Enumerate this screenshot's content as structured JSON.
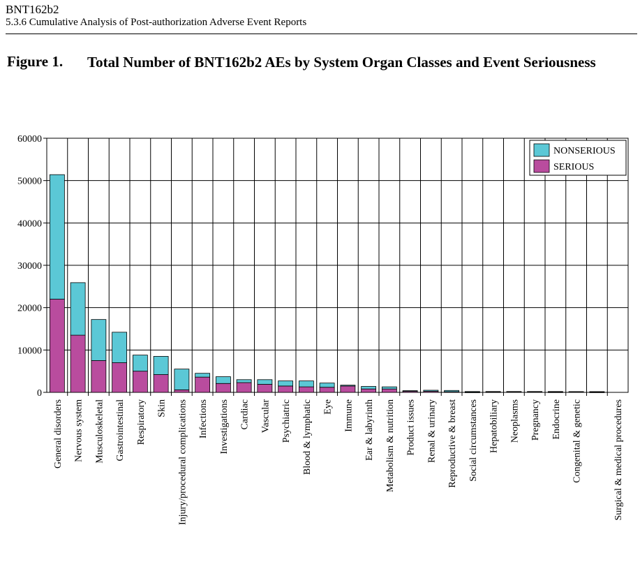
{
  "header": {
    "doc_id": "BNT162b2",
    "section": "5.3.6 Cumulative Analysis of Post-authorization Adverse Event Reports"
  },
  "figure": {
    "label": "Figure 1.",
    "title": "Total Number of BNT162b2 AEs by System Organ Classes and Event Seriousness"
  },
  "chart_data": {
    "type": "bar",
    "stacked": true,
    "title": "",
    "xlabel": "",
    "ylabel": "",
    "ylim": [
      0,
      60000
    ],
    "yticks": [
      0,
      10000,
      20000,
      30000,
      40000,
      50000,
      60000
    ],
    "ytick_labels": [
      "0",
      "10000",
      "20000",
      "30000",
      "40000",
      "50000",
      "60000"
    ],
    "grid": true,
    "legend_position": "top-right",
    "categories": [
      "General disorders",
      "Nervous system",
      "Musculoskeletal",
      "Gastrointestinal",
      "Respiratory",
      "Skin",
      "Injury/procedural complications",
      "Infections",
      "Investigations",
      "Cardiac",
      "Vascular",
      "Psychiatric",
      "Blood & lymphatic",
      "Eye",
      "Immune",
      "Ear & labyrinth",
      "Metabolism & nutrition",
      "Product issues",
      "Renal & urinary",
      "Reproductive & breast",
      "Social circumstances",
      "Hepatobiliary",
      "Neoplasms",
      "Pregnancy",
      "Endocrine",
      "Congenital & genetic",
      "",
      "Surgical & medical procedures"
    ],
    "series": [
      {
        "name": "SERIOUS",
        "color": "#b94c9e",
        "values": [
          22000,
          13500,
          7500,
          7000,
          5000,
          4200,
          600,
          3600,
          2100,
          2300,
          1900,
          1500,
          1300,
          1200,
          1500,
          800,
          800,
          250,
          250,
          150,
          50,
          100,
          150,
          150,
          80,
          150,
          60,
          0
        ]
      },
      {
        "name": "NONSERIOUS",
        "color": "#5bc8d6",
        "values": [
          29400,
          12400,
          9700,
          7200,
          3800,
          4300,
          4900,
          900,
          1600,
          700,
          1100,
          1200,
          1400,
          1000,
          200,
          600,
          500,
          150,
          250,
          300,
          150,
          100,
          50,
          50,
          120,
          30,
          120,
          0
        ]
      }
    ]
  }
}
